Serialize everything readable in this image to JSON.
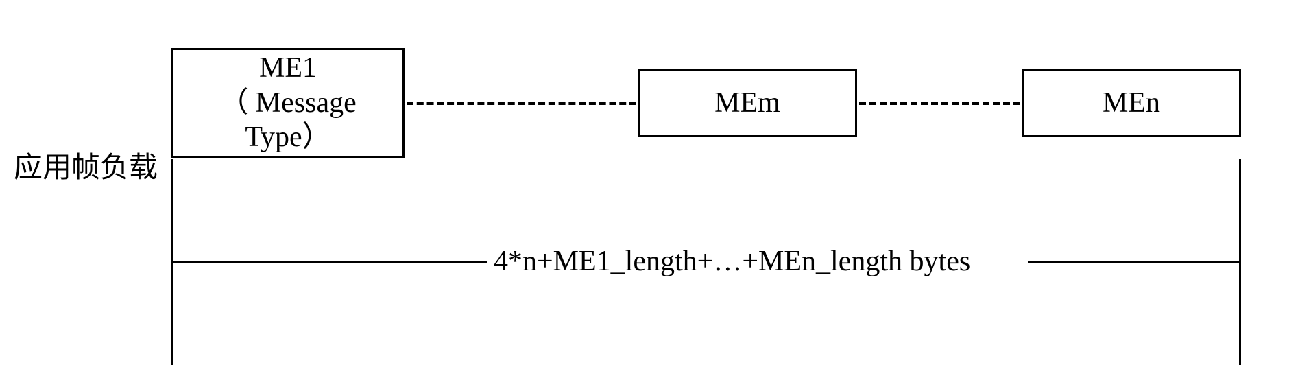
{
  "diagram": {
    "type": "block-diagram",
    "side_label": "应用帧负载",
    "boxes": [
      {
        "id": "me1",
        "line1": "ME1",
        "line2": "（ Message",
        "line3": "Type）"
      },
      {
        "id": "mem",
        "label": "MEm"
      },
      {
        "id": "men",
        "label": "MEn"
      }
    ],
    "connectors": [
      {
        "style": "dashed",
        "from": "me1",
        "to": "mem"
      },
      {
        "style": "dashed",
        "from": "mem",
        "to": "men"
      }
    ],
    "dimension_label": "4*n+ME1_length+…+MEn_length bytes",
    "style": {
      "border_color": "#000000",
      "border_width": 3,
      "background_color": "#ffffff",
      "font_size": 42,
      "font_family_cn": "KaiTi",
      "font_family_latin": "Times New Roman",
      "dash_width": 5
    }
  }
}
